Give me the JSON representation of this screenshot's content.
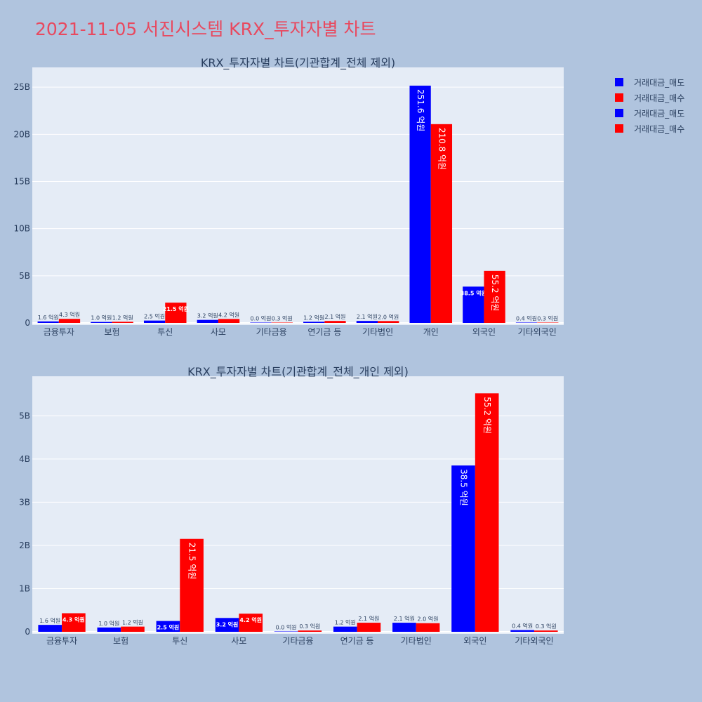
{
  "title": "2021-11-05 서진시스템 KRX_투자자별 차트",
  "legend": [
    {
      "label": "거래대금_매도",
      "color": "#0000ff"
    },
    {
      "label": "거래대금_매수",
      "color": "#ff0000"
    },
    {
      "label": "거래대금_매도",
      "color": "#0000ff"
    },
    {
      "label": "거래대금_매수",
      "color": "#ff0000"
    }
  ],
  "chart_data": [
    {
      "type": "bar",
      "title": "KRX_투자자별 차트(기관합계_전체 제외)",
      "categories": [
        "금융투자",
        "보험",
        "투신",
        "사모",
        "기타금융",
        "연기금 등",
        "기타법인",
        "개인",
        "외국인",
        "기타외국인"
      ],
      "yticks": [
        "0",
        "5B",
        "10B",
        "15B",
        "20B",
        "25B"
      ],
      "ylim": [
        0,
        26.8
      ],
      "grid": true,
      "series": [
        {
          "name": "거래대금_매도",
          "color": "#0000ff",
          "values": [
            0.16,
            0.1,
            0.25,
            0.32,
            0.0,
            0.12,
            0.21,
            25.16,
            3.85,
            0.04
          ],
          "labels": [
            "1.6 억원",
            "1.0 억원",
            "2.5 억원",
            "3.2 억원",
            "0.0 억원",
            "1.2 억원",
            "2.1 억원",
            "251.6 억원",
            "38.5 억원",
            "0.4 억원"
          ]
        },
        {
          "name": "거래대금_매수",
          "color": "#ff0000",
          "values": [
            0.43,
            0.12,
            2.15,
            0.42,
            0.03,
            0.21,
            0.2,
            21.08,
            5.52,
            0.03
          ],
          "labels": [
            "4.3 억원",
            "1.2 억원",
            "21.5 억원",
            "4.2 억원",
            "0.3 억원",
            "2.1 억원",
            "2.0 억원",
            "210.8 억원",
            "55.2 억원",
            "0.3 억원"
          ]
        }
      ]
    },
    {
      "type": "bar",
      "title": "KRX_투자자별 차트(기관합계_전체_개인 제외)",
      "categories": [
        "금융투자",
        "보험",
        "투신",
        "사모",
        "기타금융",
        "연기금 등",
        "기타법인",
        "외국인",
        "기타외국인"
      ],
      "yticks": [
        "0",
        "1B",
        "2B",
        "3B",
        "4B",
        "5B"
      ],
      "ylim": [
        0,
        5.85
      ],
      "grid": true,
      "series": [
        {
          "name": "거래대금_매도",
          "color": "#0000ff",
          "values": [
            0.16,
            0.1,
            0.25,
            0.32,
            0.0,
            0.12,
            0.21,
            3.85,
            0.04
          ],
          "labels": [
            "1.6 억원",
            "1.0 억원",
            "2.5 억원",
            "3.2 억원",
            "0.0 억원",
            "1.2 억원",
            "2.1 억원",
            "38.5 억원",
            "0.4 억원"
          ]
        },
        {
          "name": "거래대금_매수",
          "color": "#ff0000",
          "values": [
            0.43,
            0.12,
            2.15,
            0.42,
            0.03,
            0.21,
            0.2,
            5.52,
            0.03
          ],
          "labels": [
            "4.3 억원",
            "1.2 억원",
            "21.5 억원",
            "4.2 억원",
            "0.3 억원",
            "2.1 억원",
            "2.0 억원",
            "55.2 억원",
            "0.3 억원"
          ]
        }
      ]
    }
  ]
}
